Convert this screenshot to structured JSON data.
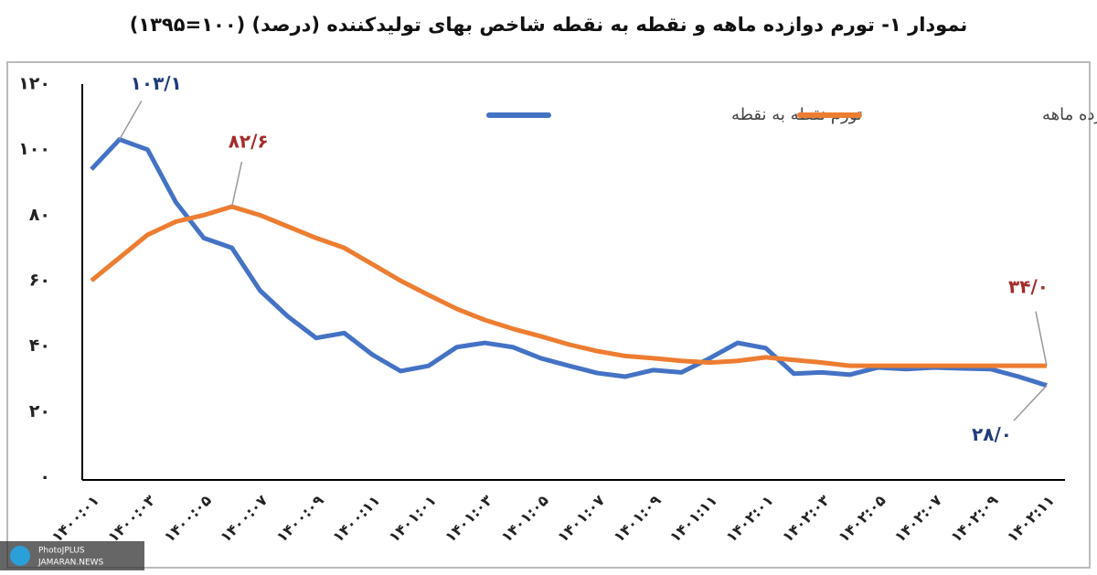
{
  "chart_data": {
    "type": "line",
    "title": "نمودار ۱- تورم دوازده ماهه و نقطه به نقطه شاخص بهای تولیدکننده (درصد) (۱۰۰=۱۳۹۵)",
    "categories": [
      "۱۴۰۰:۰۱",
      null,
      "۱۴۰۰:۰۳",
      null,
      "۱۴۰۰:۰۵",
      null,
      "۱۴۰۰:۰۷",
      null,
      "۱۴۰۰:۰۹",
      null,
      "۱۴۰۰:۱۱",
      null,
      "۱۴۰۱:۰۱",
      null,
      "۱۴۰۱:۰۳",
      null,
      "۱۴۰۱:۰۵",
      null,
      "۱۴۰۱:۰۷",
      null,
      "۱۴۰۱:۰۹",
      null,
      "۱۴۰۱:۱۱",
      null,
      "۱۴۰۲:۰۱",
      null,
      "۱۴۰۲:۰۳",
      null,
      "۱۴۰۲:۰۵",
      null,
      "۱۴۰۲:۰۷",
      null,
      "۱۴۰۲:۰۹",
      null,
      "۱۴۰۲:۱۱"
    ],
    "series": [
      {
        "name": "تورم نقطه به نقطه",
        "color": "#4472c4",
        "values": [
          94,
          103.1,
          100,
          84,
          73,
          70,
          57,
          49,
          42.5,
          44,
          37.4,
          32.4,
          34,
          39.7,
          41,
          39.7,
          36.3,
          34,
          31.8,
          30.7,
          32.7,
          32,
          36.3,
          41,
          39.4,
          31.6,
          32,
          31.3,
          33.5,
          33,
          33.5,
          33.2,
          33,
          30.7,
          28.0
        ],
        "value_labels": [
          null,
          "۱۰۳/۱",
          null,
          null,
          null,
          null,
          null,
          null,
          null,
          null,
          null,
          null,
          null,
          null,
          null,
          null,
          null,
          null,
          null,
          null,
          null,
          null,
          null,
          null,
          null,
          null,
          null,
          null,
          null,
          null,
          null,
          null,
          null,
          null,
          "۲۸/۰"
        ],
        "label_color": "#1f3b7a"
      },
      {
        "name": "تورم دوازده ماهه",
        "color": "#ed7d31",
        "values": [
          60,
          67,
          74,
          78,
          80,
          82.6,
          80,
          76.5,
          73,
          70,
          65,
          60,
          55.6,
          51.4,
          48,
          45.3,
          43,
          40.5,
          38.5,
          37,
          36.3,
          35.5,
          35,
          35.5,
          36.6,
          35.8,
          35,
          34,
          34,
          34,
          34,
          34,
          34,
          34,
          34.0
        ],
        "value_labels": [
          null,
          null,
          null,
          null,
          null,
          "۸۲/۶",
          null,
          null,
          null,
          null,
          null,
          null,
          null,
          null,
          null,
          null,
          null,
          null,
          null,
          null,
          null,
          null,
          null,
          null,
          null,
          null,
          null,
          null,
          null,
          null,
          null,
          null,
          null,
          null,
          "۳۴/۰"
        ],
        "label_color": "#a52a2a"
      }
    ],
    "ylim": [
      0,
      120
    ],
    "yticks": [
      {
        "value": 0,
        "label": "۰"
      },
      {
        "value": 20,
        "label": "۲۰"
      },
      {
        "value": 40,
        "label": "۴۰"
      },
      {
        "value": 60,
        "label": "۶۰"
      },
      {
        "value": 80,
        "label": "۸۰"
      },
      {
        "value": 100,
        "label": "۱۰۰"
      },
      {
        "value": 120,
        "label": "۱۲۰"
      }
    ],
    "grid": false
  },
  "watermark": {
    "line1": "PhotoJPLUS",
    "line2": "JAMARAN.NEWS"
  }
}
